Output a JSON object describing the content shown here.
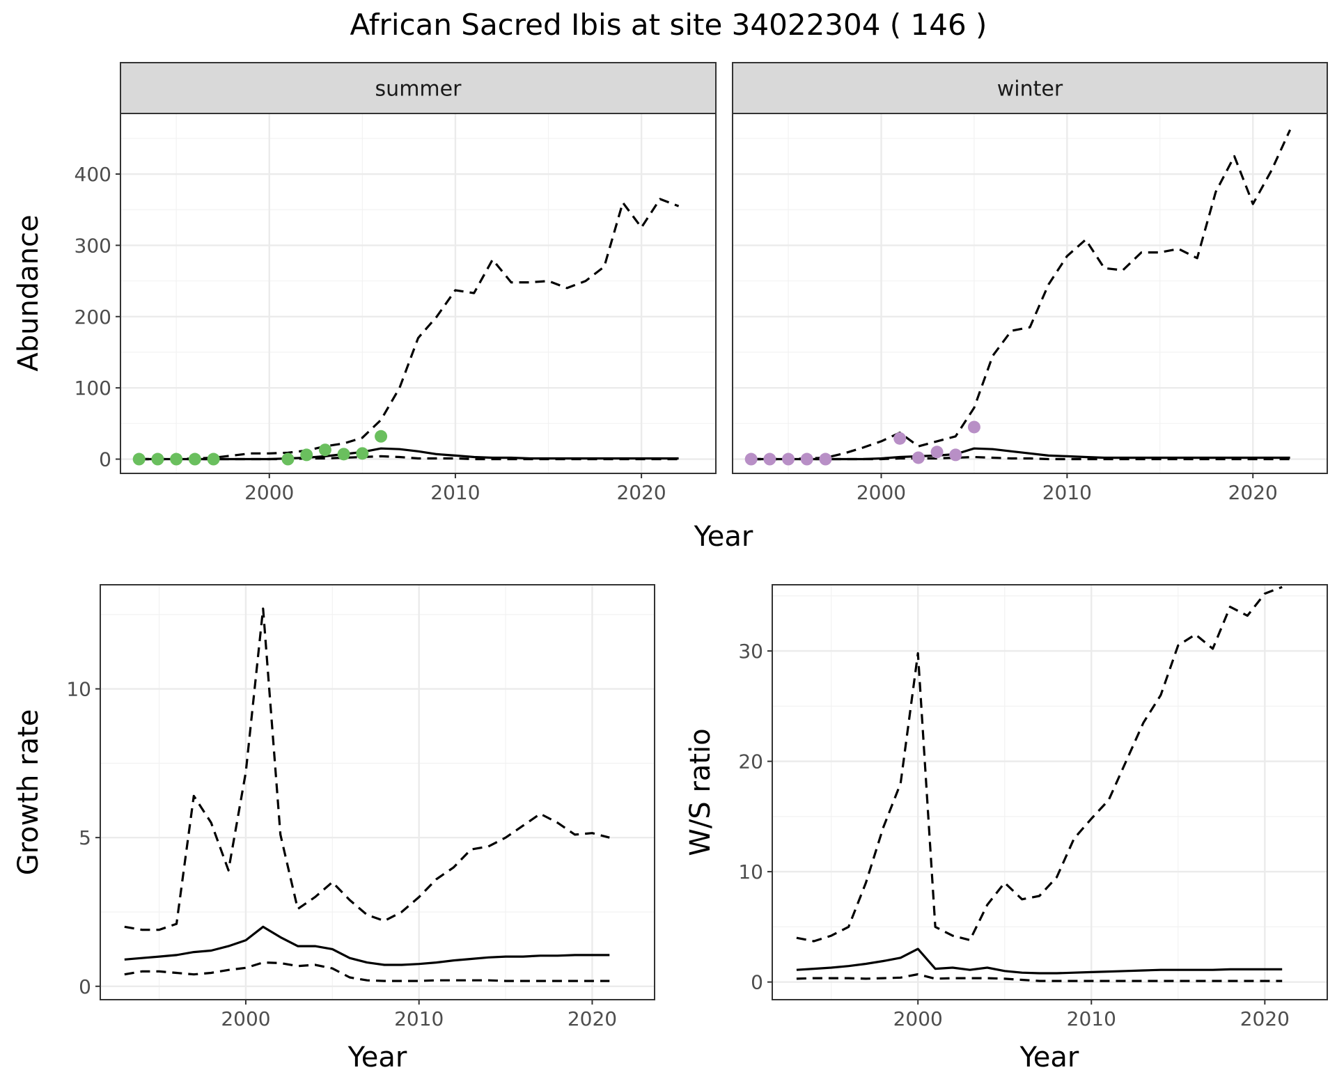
{
  "title": "African Sacred Ibis at site 34022304 ( 146 )",
  "colors": {
    "summer_points": "#6abf5e",
    "winter_points": "#b88fc6",
    "lines": "#000000"
  },
  "chart_data": [
    {
      "type": "line",
      "facet_label": "summer",
      "xlabel": "Year",
      "ylabel": "Abundance",
      "xlim": [
        1992,
        2024
      ],
      "ylim": [
        -20,
        485
      ],
      "x_ticks": [
        2000,
        2010,
        2020
      ],
      "y_ticks": [
        0,
        100,
        200,
        300,
        400
      ],
      "grid": true,
      "series": [
        {
          "style": "solid",
          "x": [
            1993,
            1994,
            1995,
            1996,
            1997,
            1998,
            1999,
            2000,
            2001,
            2002,
            2003,
            2004,
            2005,
            2006,
            2007,
            2008,
            2009,
            2010,
            2011,
            2012,
            2013,
            2014,
            2015,
            2016,
            2017,
            2018,
            2019,
            2020,
            2021,
            2022
          ],
          "y": [
            0,
            0,
            0,
            0,
            0,
            0,
            0,
            0,
            1,
            2,
            4,
            7,
            10,
            15,
            14,
            11,
            7,
            5,
            3,
            2,
            2,
            1,
            1,
            1,
            1,
            1,
            1,
            1,
            1,
            1
          ]
        },
        {
          "style": "dashed",
          "x": [
            1993,
            1994,
            1995,
            1996,
            1997,
            1998,
            1999,
            2000,
            2001,
            2002,
            2003,
            2004,
            2005,
            2006,
            2007,
            2008,
            2009,
            2010,
            2011,
            2012,
            2013,
            2014,
            2015,
            2016,
            2017,
            2018,
            2019,
            2020,
            2021,
            2022
          ],
          "y": [
            0,
            0,
            0,
            1,
            2,
            5,
            8,
            8,
            9,
            12,
            18,
            22,
            30,
            55,
            100,
            170,
            200,
            237,
            233,
            280,
            248,
            248,
            250,
            240,
            250,
            270,
            360,
            325,
            365,
            355
          ]
        },
        {
          "style": "dashed",
          "x": [
            1993,
            1994,
            1995,
            1996,
            1997,
            1998,
            1999,
            2000,
            2001,
            2002,
            2003,
            2004,
            2005,
            2006,
            2007,
            2008,
            2009,
            2010,
            2011,
            2012,
            2013,
            2014,
            2015,
            2016,
            2017,
            2018,
            2019,
            2020,
            2021,
            2022
          ],
          "y": [
            0,
            0,
            0,
            0,
            0,
            0,
            0,
            0,
            0,
            1,
            1,
            2,
            3,
            4,
            3,
            1,
            1,
            1,
            0,
            0,
            0,
            0,
            0,
            0,
            0,
            0,
            0,
            0,
            0,
            0
          ]
        }
      ],
      "points": {
        "x": [
          1993,
          1994,
          1995,
          1996,
          1997,
          2001,
          2002,
          2003,
          2004,
          2005,
          2006
        ],
        "y": [
          0,
          0,
          0,
          0,
          0,
          0,
          6,
          13,
          7,
          8,
          32
        ]
      }
    },
    {
      "type": "line",
      "facet_label": "winter",
      "xlabel": "Year",
      "ylabel": "Abundance",
      "xlim": [
        1992,
        2024
      ],
      "ylim": [
        -20,
        485
      ],
      "x_ticks": [
        2000,
        2010,
        2020
      ],
      "y_ticks": [
        0,
        100,
        200,
        300,
        400
      ],
      "grid": true,
      "series": [
        {
          "style": "solid",
          "x": [
            1993,
            1994,
            1995,
            1996,
            1997,
            1998,
            1999,
            2000,
            2001,
            2002,
            2003,
            2004,
            2005,
            2006,
            2007,
            2008,
            2009,
            2010,
            2011,
            2012,
            2013,
            2014,
            2015,
            2016,
            2017,
            2018,
            2019,
            2020,
            2021,
            2022
          ],
          "y": [
            0,
            0,
            0,
            0,
            0,
            0,
            0,
            1,
            3,
            4,
            5,
            7,
            15,
            14,
            11,
            8,
            5,
            4,
            3,
            2,
            2,
            2,
            2,
            2,
            2,
            2,
            2,
            2,
            2,
            2
          ]
        },
        {
          "style": "dashed",
          "x": [
            1993,
            1994,
            1995,
            1996,
            1997,
            1998,
            1999,
            2000,
            2001,
            2002,
            2003,
            2004,
            2005,
            2006,
            2007,
            2008,
            2009,
            2010,
            2011,
            2012,
            2013,
            2014,
            2015,
            2016,
            2017,
            2018,
            2019,
            2020,
            2021,
            2022
          ],
          "y": [
            0,
            0,
            0,
            1,
            2,
            8,
            16,
            25,
            37,
            18,
            25,
            32,
            72,
            145,
            180,
            185,
            245,
            285,
            308,
            268,
            265,
            290,
            290,
            295,
            282,
            375,
            425,
            358,
            405,
            462
          ]
        },
        {
          "style": "dashed",
          "x": [
            1993,
            1994,
            1995,
            1996,
            1997,
            1998,
            1999,
            2000,
            2001,
            2002,
            2003,
            2004,
            2005,
            2006,
            2007,
            2008,
            2009,
            2010,
            2011,
            2012,
            2013,
            2014,
            2015,
            2016,
            2017,
            2018,
            2019,
            2020,
            2021,
            2022
          ],
          "y": [
            0,
            0,
            0,
            0,
            0,
            0,
            0,
            0,
            1,
            1,
            1,
            2,
            3,
            2,
            1,
            1,
            0,
            0,
            0,
            0,
            0,
            0,
            0,
            0,
            0,
            0,
            0,
            0,
            0,
            0
          ]
        }
      ],
      "points": {
        "x": [
          1993,
          1994,
          1995,
          1996,
          1997,
          2001,
          2002,
          2003,
          2004,
          2005
        ],
        "y": [
          0,
          0,
          0,
          0,
          0,
          29,
          2,
          10,
          6,
          45
        ]
      }
    },
    {
      "type": "line",
      "xlabel": "Year",
      "ylabel": "Growth rate",
      "xlim": [
        1991.6,
        2023.6
      ],
      "ylim": [
        -0.45,
        13.5
      ],
      "x_ticks": [
        2000,
        2010,
        2020
      ],
      "y_ticks": [
        0,
        5,
        10
      ],
      "grid": true,
      "series": [
        {
          "style": "solid",
          "x": [
            1993,
            1994,
            1995,
            1996,
            1997,
            1998,
            1999,
            2000,
            2001,
            2002,
            2003,
            2004,
            2005,
            2006,
            2007,
            2008,
            2009,
            2010,
            2011,
            2012,
            2013,
            2014,
            2015,
            2016,
            2017,
            2018,
            2019,
            2020,
            2021
          ],
          "y": [
            0.9,
            0.95,
            1.0,
            1.05,
            1.15,
            1.2,
            1.35,
            1.55,
            2.0,
            1.65,
            1.35,
            1.35,
            1.25,
            0.95,
            0.8,
            0.72,
            0.72,
            0.75,
            0.8,
            0.87,
            0.92,
            0.97,
            1.0,
            1.0,
            1.03,
            1.03,
            1.05,
            1.05,
            1.05
          ]
        },
        {
          "style": "dashed",
          "x": [
            1993,
            1994,
            1995,
            1996,
            1997,
            1998,
            1999,
            2000,
            2001,
            2002,
            2003,
            2004,
            2005,
            2006,
            2007,
            2008,
            2009,
            2010,
            2011,
            2012,
            2013,
            2014,
            2015,
            2016,
            2017,
            2018,
            2019,
            2020,
            2021
          ],
          "y": [
            2.0,
            1.9,
            1.9,
            2.1,
            6.4,
            5.5,
            3.9,
            7.2,
            12.7,
            5.1,
            2.6,
            3.0,
            3.5,
            2.9,
            2.4,
            2.2,
            2.5,
            3.0,
            3.6,
            4.0,
            4.6,
            4.7,
            5.0,
            5.4,
            5.8,
            5.5,
            5.1,
            5.15,
            5.0
          ]
        },
        {
          "style": "dashed",
          "x": [
            1993,
            1994,
            1995,
            1996,
            1997,
            1998,
            1999,
            2000,
            2001,
            2002,
            2003,
            2004,
            2005,
            2006,
            2007,
            2008,
            2009,
            2010,
            2011,
            2012,
            2013,
            2014,
            2015,
            2016,
            2017,
            2018,
            2019,
            2020,
            2021
          ],
          "y": [
            0.4,
            0.5,
            0.5,
            0.45,
            0.4,
            0.45,
            0.55,
            0.62,
            0.8,
            0.78,
            0.68,
            0.72,
            0.6,
            0.3,
            0.2,
            0.18,
            0.18,
            0.18,
            0.2,
            0.2,
            0.2,
            0.2,
            0.18,
            0.18,
            0.18,
            0.18,
            0.18,
            0.18,
            0.18
          ]
        }
      ]
    },
    {
      "type": "line",
      "xlabel": "Year",
      "ylabel": "W/S ratio",
      "xlim": [
        1991.6,
        2023.6
      ],
      "ylim": [
        -1.6,
        36.0
      ],
      "x_ticks": [
        2000,
        2010,
        2020
      ],
      "y_ticks": [
        0,
        10,
        20,
        30
      ],
      "grid": true,
      "series": [
        {
          "style": "solid",
          "x": [
            1993,
            1994,
            1995,
            1996,
            1997,
            1998,
            1999,
            2000,
            2001,
            2002,
            2003,
            2004,
            2005,
            2006,
            2007,
            2008,
            2009,
            2010,
            2011,
            2012,
            2013,
            2014,
            2015,
            2016,
            2017,
            2018,
            2019,
            2020,
            2021
          ],
          "y": [
            1.1,
            1.2,
            1.3,
            1.45,
            1.65,
            1.9,
            2.2,
            3.0,
            1.2,
            1.3,
            1.1,
            1.3,
            1.0,
            0.85,
            0.8,
            0.8,
            0.85,
            0.9,
            0.95,
            1.0,
            1.05,
            1.1,
            1.1,
            1.1,
            1.1,
            1.15,
            1.15,
            1.15,
            1.15
          ]
        },
        {
          "style": "dashed",
          "x": [
            1993,
            1994,
            1995,
            1996,
            1997,
            1998,
            1999,
            2000,
            2001,
            2002,
            2003,
            2004,
            2005,
            2006,
            2007,
            2008,
            2009,
            2010,
            2011,
            2012,
            2013,
            2014,
            2015,
            2016,
            2017,
            2018,
            2019,
            2020,
            2021
          ],
          "y": [
            4.0,
            3.7,
            4.2,
            5.0,
            9.0,
            14.0,
            18.0,
            29.8,
            5.0,
            4.2,
            3.8,
            7.0,
            9.0,
            7.5,
            7.8,
            9.5,
            13.0,
            14.8,
            16.5,
            20.0,
            23.5,
            26.0,
            30.5,
            31.5,
            30.2,
            34.0,
            33.2,
            35.2,
            35.8
          ]
        },
        {
          "style": "dashed",
          "x": [
            1993,
            1994,
            1995,
            1996,
            1997,
            1998,
            1999,
            2000,
            2001,
            2002,
            2003,
            2004,
            2005,
            2006,
            2007,
            2008,
            2009,
            2010,
            2011,
            2012,
            2013,
            2014,
            2015,
            2016,
            2017,
            2018,
            2019,
            2020,
            2021
          ],
          "y": [
            0.3,
            0.35,
            0.35,
            0.35,
            0.3,
            0.35,
            0.4,
            0.7,
            0.3,
            0.35,
            0.35,
            0.35,
            0.3,
            0.2,
            0.1,
            0.1,
            0.1,
            0.1,
            0.1,
            0.1,
            0.1,
            0.1,
            0.1,
            0.1,
            0.1,
            0.1,
            0.1,
            0.1,
            0.1
          ]
        }
      ]
    }
  ]
}
